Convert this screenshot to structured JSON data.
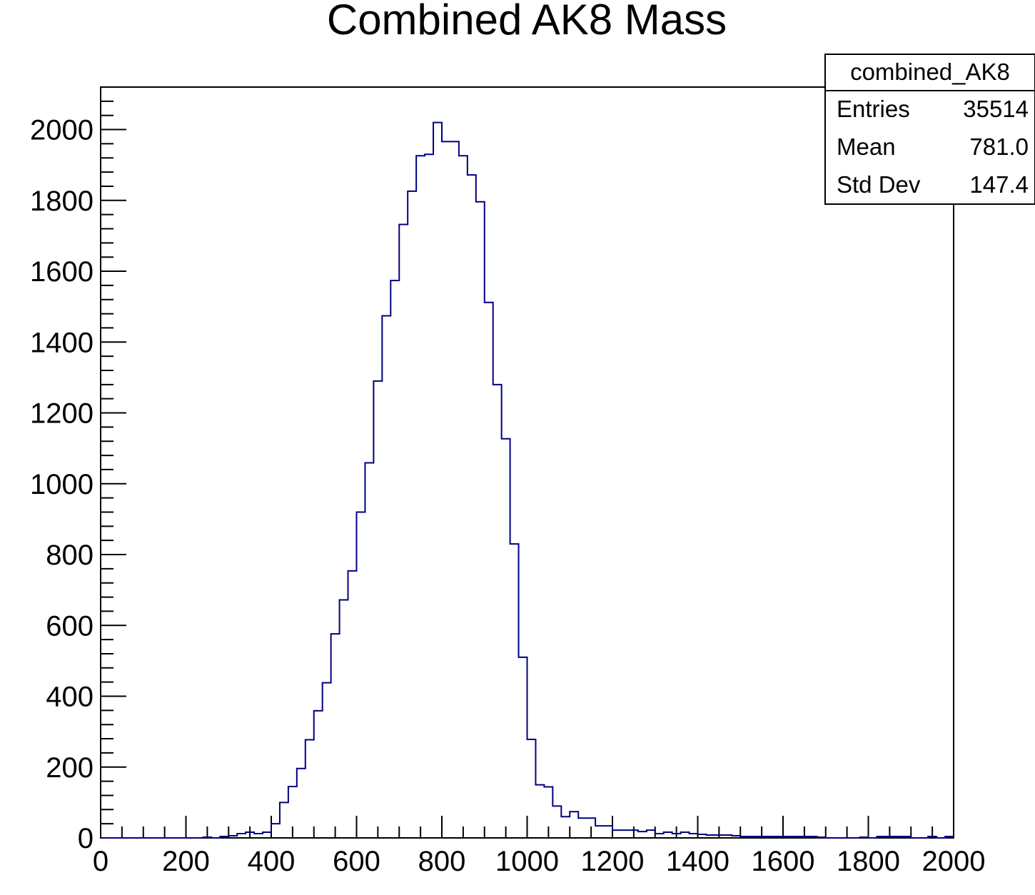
{
  "chart_data": {
    "type": "bar",
    "title": "Combined AK8 Mass",
    "xlabel": "",
    "ylabel": "",
    "xlim": [
      0,
      2000
    ],
    "ylim": [
      0,
      2120
    ],
    "grid": false,
    "legend": "none",
    "bin_width": 20,
    "x_ticks": [
      "0",
      "200",
      "400",
      "600",
      "800",
      "1000",
      "1200",
      "1400",
      "1600",
      "1800",
      "2000"
    ],
    "y_ticks": [
      "0",
      "200",
      "400",
      "600",
      "800",
      "1000",
      "1200",
      "1400",
      "1600",
      "1800",
      "2000"
    ],
    "line_color": "#000080",
    "stats": {
      "name": "combined_AK8",
      "rows": [
        {
          "label": "Entries",
          "value": "35514"
        },
        {
          "label": "Mean",
          "value": "781.0"
        },
        {
          "label": "Std Dev",
          "value": "147.4"
        }
      ]
    },
    "series": [
      {
        "values": [
          0,
          0,
          0,
          0,
          0,
          0,
          0,
          0,
          0,
          0,
          0,
          0,
          2,
          0,
          4,
          6,
          12,
          16,
          12,
          16,
          40,
          100,
          145,
          196,
          277,
          359,
          438,
          576,
          672,
          754,
          920,
          1059,
          1290,
          1474,
          1574,
          1732,
          1826,
          1926,
          1930,
          2020,
          1966,
          1966,
          1926,
          1872,
          1796,
          1512,
          1280,
          1127,
          830,
          510,
          278,
          150,
          144,
          90,
          60,
          74,
          56,
          56,
          34,
          34,
          22,
          22,
          22,
          18,
          22,
          12,
          16,
          12,
          16,
          12,
          10,
          8,
          8,
          8,
          6,
          4,
          4,
          4,
          4,
          4,
          4,
          4,
          4,
          4,
          2,
          0,
          0,
          0,
          0,
          2,
          0,
          4,
          4,
          4,
          4,
          0,
          0,
          4,
          0,
          4
        ]
      }
    ]
  }
}
